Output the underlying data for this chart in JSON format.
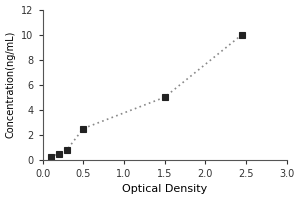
{
  "x": [
    0.1,
    0.2,
    0.3,
    0.5,
    1.5,
    2.45
  ],
  "y": [
    0.2,
    0.5,
    0.8,
    2.5,
    5.0,
    10.0
  ],
  "xlabel": "Optical Density",
  "ylabel": "Concentration(ng/mL)",
  "xlim": [
    0,
    3
  ],
  "ylim": [
    0,
    12
  ],
  "xticks": [
    0,
    0.5,
    1,
    1.5,
    2,
    2.5,
    3
  ],
  "yticks": [
    0,
    2,
    4,
    6,
    8,
    10,
    12
  ],
  "line_color": "#888888",
  "marker_color": "#222222",
  "line_style": "dotted",
  "marker_style": "s",
  "marker_size": 4,
  "linewidth": 1.2,
  "title": "",
  "background_color": "#ffffff",
  "xlabel_fontsize": 8,
  "ylabel_fontsize": 7,
  "tick_fontsize": 7,
  "spine_color": "#555555"
}
